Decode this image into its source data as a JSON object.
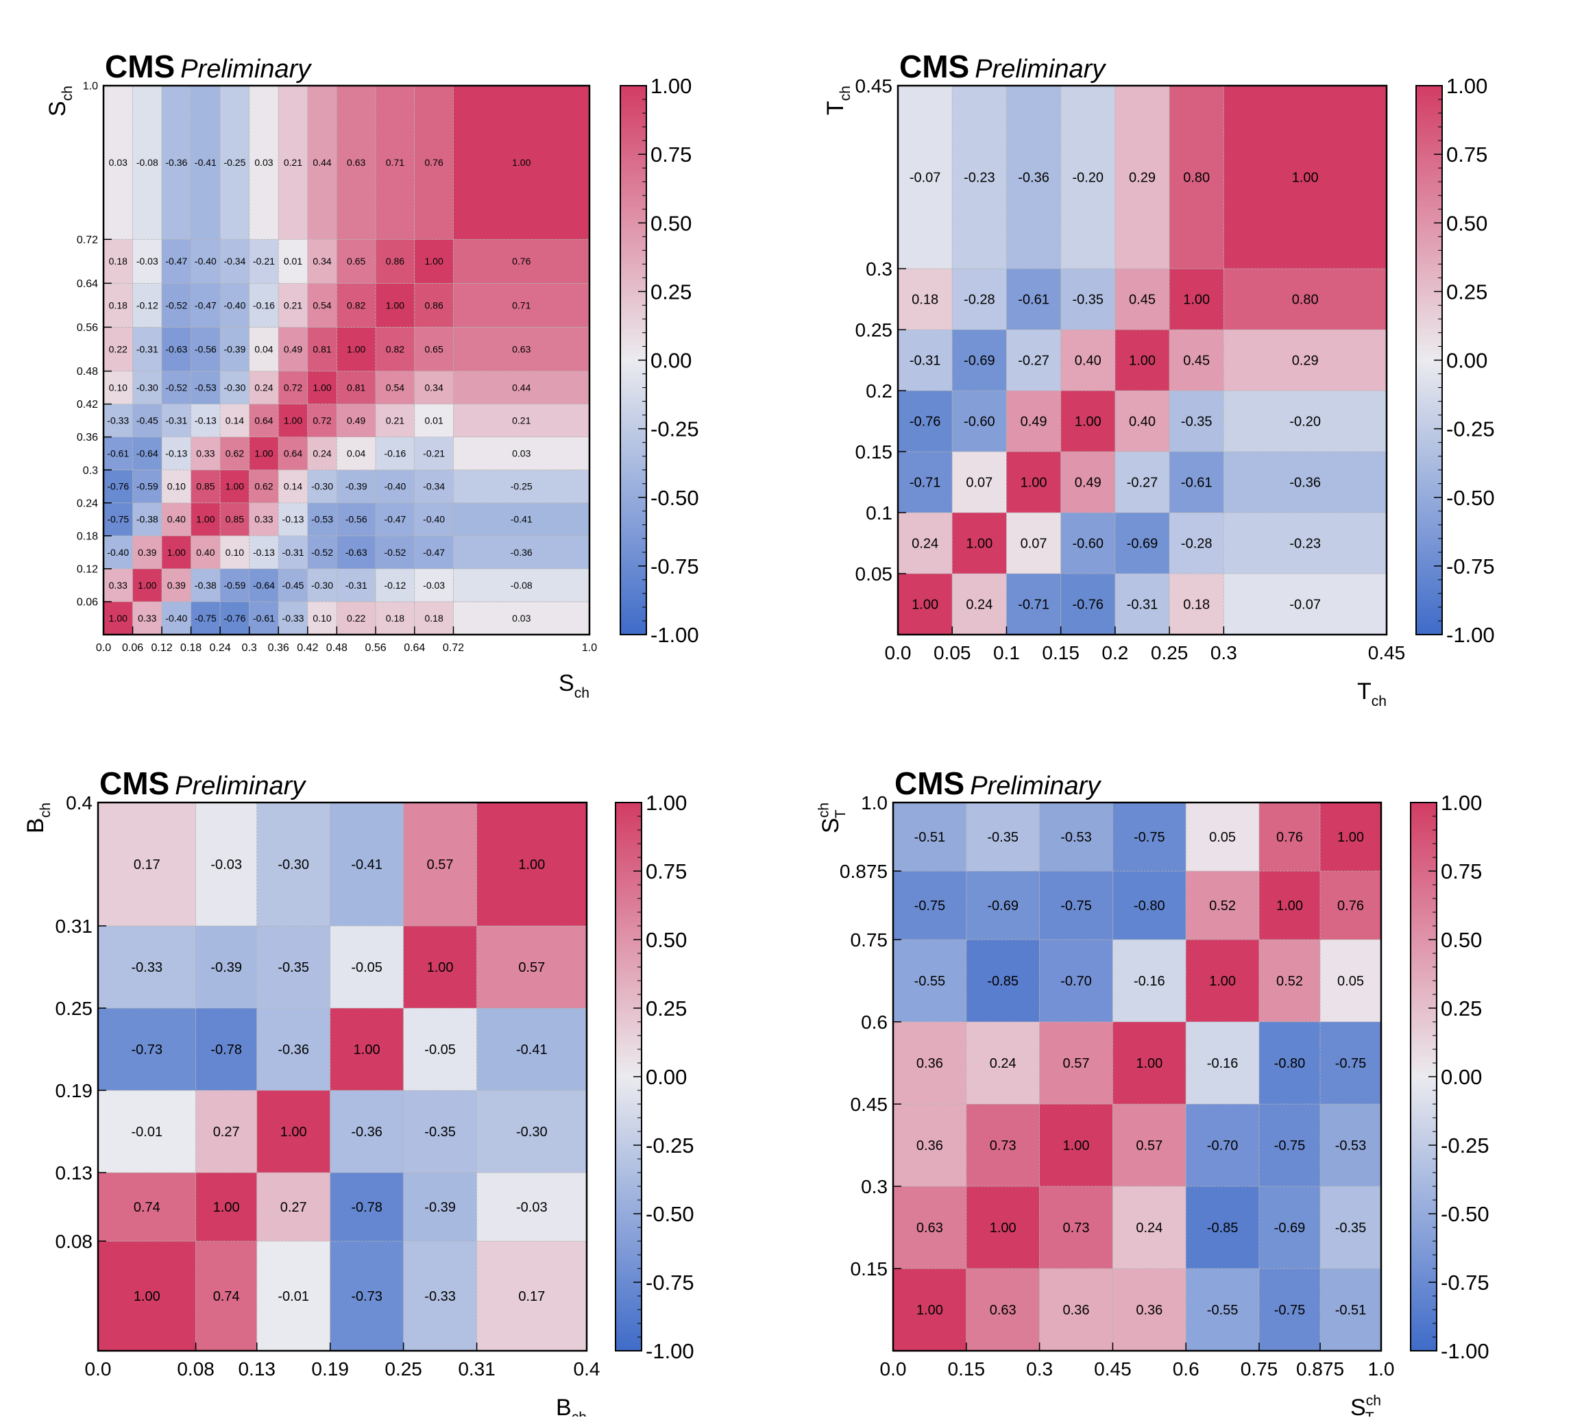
{
  "colors": {
    "negative": "#3f6bc8",
    "neutral": "#ebebef",
    "positive": "#d23c64"
  },
  "chart_data": [
    {
      "type": "heatmap",
      "experiment": "CMS",
      "tag": "Preliminary",
      "xlabel": "S_ch",
      "ylabel": "S_ch",
      "edges": [
        0.0,
        0.06,
        0.12,
        0.18,
        0.24,
        0.3,
        0.36,
        0.42,
        0.48,
        0.56,
        0.64,
        0.72,
        1.0
      ],
      "tick_labels": [
        "0.0",
        "0.06",
        "0.12",
        "0.18",
        "0.24",
        "0.3",
        "0.36",
        "0.42",
        "0.48",
        "0.56",
        "0.64",
        "0.72",
        "1.0"
      ],
      "matrix": [
        [
          1.0,
          0.33,
          -0.4,
          -0.75,
          -0.76,
          -0.61,
          -0.33,
          0.1,
          0.22,
          0.18,
          0.18,
          0.03
        ],
        [
          0.33,
          1.0,
          0.39,
          -0.38,
          -0.59,
          -0.64,
          -0.45,
          -0.3,
          -0.31,
          -0.12,
          -0.03,
          -0.08
        ],
        [
          -0.4,
          0.39,
          1.0,
          0.4,
          0.1,
          -0.13,
          -0.31,
          -0.52,
          -0.63,
          -0.52,
          -0.47,
          -0.36
        ],
        [
          -0.75,
          -0.38,
          0.4,
          1.0,
          0.85,
          0.33,
          -0.13,
          -0.53,
          -0.56,
          -0.47,
          -0.4,
          -0.41
        ],
        [
          -0.76,
          -0.59,
          0.1,
          0.85,
          1.0,
          0.62,
          0.14,
          -0.3,
          -0.39,
          -0.4,
          -0.34,
          -0.25
        ],
        [
          -0.61,
          -0.64,
          -0.13,
          0.33,
          0.62,
          1.0,
          0.64,
          0.24,
          0.04,
          -0.16,
          -0.21,
          0.03
        ],
        [
          -0.33,
          -0.45,
          -0.31,
          -0.13,
          0.14,
          0.64,
          1.0,
          0.72,
          0.49,
          0.21,
          0.01,
          0.21
        ],
        [
          0.1,
          -0.3,
          -0.52,
          -0.53,
          -0.3,
          0.24,
          0.72,
          1.0,
          0.81,
          0.54,
          0.34,
          0.44
        ],
        [
          0.22,
          -0.31,
          -0.63,
          -0.56,
          -0.39,
          0.04,
          0.49,
          0.81,
          1.0,
          0.82,
          0.65,
          0.63
        ],
        [
          0.18,
          -0.12,
          -0.52,
          -0.47,
          -0.4,
          -0.16,
          0.21,
          0.54,
          0.82,
          1.0,
          0.86,
          0.71
        ],
        [
          0.18,
          -0.03,
          -0.47,
          -0.4,
          -0.34,
          -0.21,
          0.01,
          0.34,
          0.65,
          0.86,
          1.0,
          0.76
        ],
        [
          0.03,
          -0.08,
          -0.36,
          -0.41,
          -0.25,
          0.03,
          0.21,
          0.44,
          0.63,
          0.71,
          0.76,
          1.0
        ]
      ],
      "zlim": [
        -1.0,
        1.0
      ],
      "colorbar_ticks": [
        "1.00",
        "0.75",
        "0.50",
        "0.25",
        "0.00",
        "-0.25",
        "-0.50",
        "-0.75",
        "-1.00"
      ]
    },
    {
      "type": "heatmap",
      "experiment": "CMS",
      "tag": "Preliminary",
      "xlabel": "T_ch",
      "ylabel": "T_ch",
      "edges": [
        0.0,
        0.05,
        0.1,
        0.15,
        0.2,
        0.25,
        0.3,
        0.45
      ],
      "tick_labels": [
        "0.0",
        "0.05",
        "0.1",
        "0.15",
        "0.2",
        "0.25",
        "0.3",
        "0.45"
      ],
      "matrix": [
        [
          1.0,
          0.24,
          -0.71,
          -0.76,
          -0.31,
          0.18,
          -0.07
        ],
        [
          0.24,
          1.0,
          0.07,
          -0.6,
          -0.69,
          -0.28,
          -0.23
        ],
        [
          -0.71,
          0.07,
          1.0,
          0.49,
          -0.27,
          -0.61,
          -0.36
        ],
        [
          -0.76,
          -0.6,
          0.49,
          1.0,
          0.4,
          -0.35,
          -0.2
        ],
        [
          -0.31,
          -0.69,
          -0.27,
          0.4,
          1.0,
          0.45,
          0.29
        ],
        [
          0.18,
          -0.28,
          -0.61,
          -0.35,
          0.45,
          1.0,
          0.8
        ],
        [
          -0.07,
          -0.23,
          -0.36,
          -0.2,
          0.29,
          0.8,
          1.0
        ]
      ],
      "zlim": [
        -1.0,
        1.0
      ],
      "colorbar_ticks": [
        "1.00",
        "0.75",
        "0.50",
        "0.25",
        "0.00",
        "-0.25",
        "-0.50",
        "-0.75",
        "-1.00"
      ]
    },
    {
      "type": "heatmap",
      "experiment": "CMS",
      "tag": "Preliminary",
      "xlabel": "B_ch",
      "ylabel": "B_ch",
      "edges": [
        0.0,
        0.08,
        0.13,
        0.19,
        0.25,
        0.31,
        0.4
      ],
      "tick_labels": [
        "0.0",
        "0.08",
        "0.13",
        "0.19",
        "0.25",
        "0.31",
        "0.4"
      ],
      "matrix": [
        [
          1.0,
          0.74,
          -0.01,
          -0.73,
          -0.33,
          0.17
        ],
        [
          0.74,
          1.0,
          0.27,
          -0.78,
          -0.39,
          -0.03
        ],
        [
          -0.01,
          0.27,
          1.0,
          -0.36,
          -0.35,
          -0.3
        ],
        [
          -0.73,
          -0.78,
          -0.36,
          1.0,
          -0.05,
          -0.41
        ],
        [
          -0.33,
          -0.39,
          -0.35,
          -0.05,
          1.0,
          0.57
        ],
        [
          0.17,
          -0.03,
          -0.3,
          -0.41,
          0.57,
          1.0
        ]
      ],
      "zlim": [
        -1.0,
        1.0
      ],
      "colorbar_ticks": [
        "1.00",
        "0.75",
        "0.50",
        "0.25",
        "0.00",
        "-0.25",
        "-0.50",
        "-0.75",
        "-1.00"
      ]
    },
    {
      "type": "heatmap",
      "experiment": "CMS",
      "tag": "Preliminary",
      "xlabel": "S_T^ch",
      "ylabel": "S_T^ch",
      "edges": [
        0.0,
        0.15,
        0.3,
        0.45,
        0.6,
        0.75,
        0.875,
        1.0
      ],
      "tick_labels": [
        "0.0",
        "0.15",
        "0.3",
        "0.45",
        "0.6",
        "0.75",
        "0.875",
        "1.0"
      ],
      "matrix": [
        [
          1.0,
          0.63,
          0.36,
          0.36,
          -0.55,
          -0.75,
          -0.51
        ],
        [
          0.63,
          1.0,
          0.73,
          0.24,
          -0.85,
          -0.69,
          -0.35
        ],
        [
          0.36,
          0.73,
          1.0,
          0.57,
          -0.7,
          -0.75,
          -0.53
        ],
        [
          0.36,
          0.24,
          0.57,
          1.0,
          -0.16,
          -0.8,
          -0.75
        ],
        [
          -0.55,
          -0.85,
          -0.7,
          -0.16,
          1.0,
          0.52,
          0.05
        ],
        [
          -0.75,
          -0.69,
          -0.75,
          -0.8,
          0.52,
          1.0,
          0.76
        ],
        [
          -0.51,
          -0.35,
          -0.53,
          -0.75,
          0.05,
          0.76,
          1.0
        ]
      ],
      "zlim": [
        -1.0,
        1.0
      ],
      "colorbar_ticks": [
        "1.00",
        "0.75",
        "0.50",
        "0.25",
        "0.00",
        "-0.25",
        "-0.50",
        "-0.75",
        "-1.00"
      ]
    }
  ]
}
